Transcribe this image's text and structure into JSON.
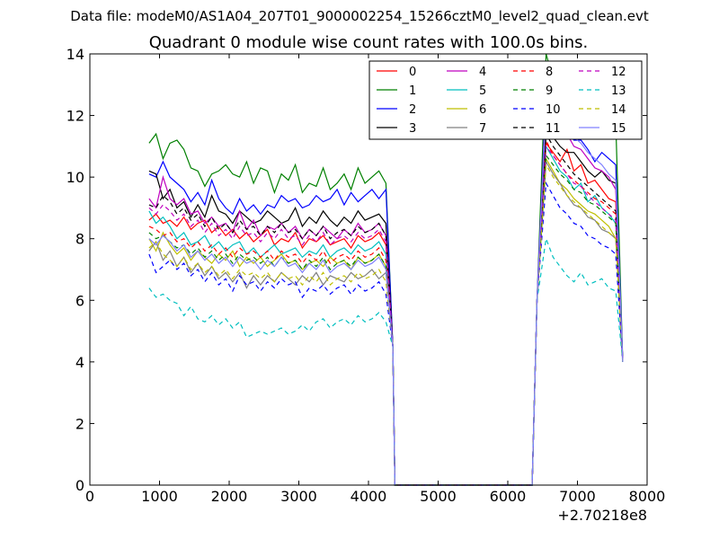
{
  "suptitle": "Data file: modeM0/AS1A04_207T01_9000002254_15266cztM0_level2_quad_clean.evt",
  "chart_data": {
    "type": "line",
    "title": "Quadrant 0 module wise count rates with 100.0s bins.",
    "xlabel": "",
    "ylabel": "",
    "x_offset_label": "+2.70218e8",
    "xlim": [
      0,
      8000
    ],
    "ylim": [
      0,
      14
    ],
    "xticks": [
      "0",
      "1000",
      "2000",
      "3000",
      "4000",
      "5000",
      "6000",
      "7000",
      "8000"
    ],
    "yticks": [
      "0",
      "2",
      "4",
      "6",
      "8",
      "10",
      "12",
      "14"
    ],
    "grid": false,
    "legend_placement": "top-right",
    "segments": [
      {
        "x_start": 850,
        "x_end": 4250,
        "points": 35
      },
      {
        "x_start": 6550,
        "x_end": 7550,
        "points": 11
      }
    ],
    "series": [
      {
        "name": "0",
        "color": "#ff0000",
        "dash": "solid",
        "first": [
          8.6,
          8.8,
          8.5,
          8.6,
          8.4,
          8.7,
          8.3,
          8.5,
          8.6,
          8.2,
          8.4,
          8.1,
          8.3,
          8.0,
          8.2,
          7.9,
          8.1,
          8.3,
          7.8,
          8.0,
          7.9,
          8.2,
          7.7,
          8.0,
          7.9,
          8.1,
          7.8,
          7.9,
          8.0,
          7.7,
          8.1,
          7.9,
          8.0,
          8.2,
          7.8
        ],
        "second": [
          11.1,
          10.8,
          10.5,
          10.9,
          10.2,
          10.4,
          9.8,
          9.9,
          9.6,
          9.3,
          9.2
        ]
      },
      {
        "name": "1",
        "color": "#008000",
        "dash": "solid",
        "first": [
          11.1,
          11.4,
          10.6,
          11.1,
          11.2,
          10.9,
          10.3,
          10.2,
          9.7,
          10.1,
          10.2,
          10.4,
          10.1,
          10.0,
          10.5,
          9.8,
          10.3,
          10.2,
          9.5,
          10.1,
          9.9,
          10.4,
          9.5,
          9.8,
          9.7,
          10.3,
          9.6,
          9.8,
          10.1,
          9.6,
          10.3,
          9.8,
          10.0,
          10.2,
          9.8
        ],
        "second": [
          14.0,
          13.2,
          12.7,
          12.6,
          12.3,
          12.0,
          11.5,
          11.9,
          11.6,
          12.4,
          11.8
        ]
      },
      {
        "name": "2",
        "color": "#0000ff",
        "dash": "solid",
        "first": [
          10.1,
          10.0,
          10.5,
          10.0,
          9.8,
          9.6,
          9.2,
          9.5,
          9.1,
          9.9,
          9.3,
          9.0,
          8.8,
          9.3,
          8.9,
          9.1,
          8.8,
          9.1,
          9.0,
          9.4,
          9.2,
          9.3,
          9.0,
          9.1,
          9.4,
          9.2,
          9.3,
          9.6,
          9.1,
          9.5,
          9.2,
          9.4,
          9.6,
          9.3,
          9.6
        ],
        "second": [
          12.8,
          12.1,
          11.8,
          11.5,
          11.2,
          11.2,
          10.9,
          10.5,
          10.8,
          10.6,
          10.4
        ]
      },
      {
        "name": "3",
        "color": "#000000",
        "dash": "solid",
        "first": [
          10.2,
          10.1,
          9.3,
          9.6,
          9.0,
          9.2,
          8.7,
          9.1,
          8.7,
          9.4,
          8.9,
          8.8,
          8.5,
          8.9,
          8.7,
          8.5,
          8.6,
          8.9,
          8.7,
          8.5,
          8.6,
          9.0,
          8.4,
          8.7,
          8.5,
          8.9,
          8.6,
          8.4,
          8.7,
          8.5,
          8.9,
          8.6,
          8.7,
          8.8,
          8.5
        ],
        "second": [
          11.6,
          11.3,
          11.0,
          10.8,
          10.8,
          10.5,
          10.2,
          10.0,
          10.2,
          9.9,
          9.8
        ]
      },
      {
        "name": "4",
        "color": "#bf00bf",
        "dash": "solid",
        "first": [
          9.3,
          9.0,
          10.0,
          9.3,
          9.1,
          9.3,
          8.8,
          8.9,
          8.5,
          8.7,
          8.4,
          8.5,
          8.2,
          8.9,
          8.3,
          8.6,
          8.1,
          8.4,
          8.3,
          8.5,
          8.2,
          8.4,
          8.0,
          8.3,
          8.1,
          8.4,
          8.2,
          8.0,
          8.3,
          8.1,
          8.5,
          8.2,
          8.3,
          8.5,
          8.1
        ],
        "second": [
          12.5,
          12.0,
          11.7,
          11.4,
          11.0,
          10.9,
          10.6,
          10.3,
          10.2,
          10.0,
          9.6
        ]
      },
      {
        "name": "5",
        "color": "#00bfbf",
        "dash": "solid",
        "first": [
          8.9,
          8.5,
          8.7,
          8.4,
          8.0,
          8.2,
          7.8,
          7.9,
          8.1,
          7.7,
          7.9,
          7.6,
          7.8,
          7.9,
          7.5,
          7.7,
          7.4,
          7.6,
          7.8,
          7.5,
          7.6,
          7.7,
          7.4,
          7.6,
          7.5,
          7.8,
          7.4,
          7.6,
          7.7,
          7.5,
          7.8,
          7.6,
          7.7,
          7.9,
          7.5
        ],
        "second": [
          11.0,
          10.6,
          10.2,
          10.0,
          9.6,
          9.8,
          9.2,
          9.4,
          9.0,
          8.8,
          8.5
        ]
      },
      {
        "name": "6",
        "color": "#bfbf00",
        "dash": "solid",
        "first": [
          8.0,
          7.6,
          8.2,
          7.8,
          7.5,
          7.7,
          7.3,
          7.6,
          7.4,
          7.2,
          7.5,
          7.3,
          7.6,
          7.1,
          7.4,
          7.2,
          7.4,
          7.1,
          7.3,
          7.5,
          7.2,
          7.3,
          7.0,
          7.2,
          7.3,
          7.1,
          7.4,
          7.2,
          7.3,
          7.0,
          7.4,
          7.2,
          7.3,
          7.5,
          7.1
        ],
        "second": [
          10.6,
          10.2,
          9.8,
          9.6,
          9.3,
          9.1,
          8.9,
          8.8,
          8.6,
          8.4,
          8.0
        ]
      },
      {
        "name": "7",
        "color": "#808080",
        "dash": "solid",
        "first": [
          7.6,
          7.9,
          7.3,
          7.6,
          7.1,
          7.4,
          6.9,
          7.2,
          6.8,
          7.1,
          6.7,
          6.9,
          6.6,
          6.9,
          6.4,
          6.8,
          6.5,
          6.8,
          6.6,
          6.9,
          6.7,
          6.5,
          6.8,
          6.6,
          6.9,
          6.5,
          6.8,
          6.7,
          6.6,
          6.9,
          6.7,
          6.8,
          7.0,
          6.7,
          6.9
        ],
        "second": [
          10.5,
          10.1,
          9.8,
          9.4,
          9.1,
          9.0,
          8.7,
          8.6,
          8.3,
          8.2,
          8.0
        ]
      },
      {
        "name": "8",
        "color": "#ff0000",
        "dash": "dashed",
        "first": [
          8.4,
          8.3,
          8.1,
          8.2,
          7.9,
          8.0,
          7.7,
          7.9,
          7.6,
          7.8,
          7.5,
          7.7,
          7.4,
          7.7,
          7.5,
          7.6,
          7.4,
          7.6,
          7.3,
          7.6,
          7.4,
          7.5,
          7.2,
          7.5,
          7.3,
          7.6,
          7.2,
          7.4,
          7.5,
          7.3,
          7.6,
          7.4,
          7.5,
          7.7,
          7.3
        ],
        "second": [
          11.2,
          10.7,
          10.4,
          10.1,
          9.9,
          9.7,
          9.5,
          9.3,
          9.2,
          9.0,
          8.8
        ]
      },
      {
        "name": "9",
        "color": "#008000",
        "dash": "dashed",
        "first": [
          8.2,
          8.0,
          8.1,
          7.9,
          7.7,
          7.8,
          7.5,
          7.7,
          7.4,
          7.6,
          7.3,
          7.5,
          7.2,
          7.5,
          7.3,
          7.4,
          7.2,
          7.4,
          7.1,
          7.4,
          7.2,
          7.3,
          7.0,
          7.3,
          7.1,
          7.4,
          7.0,
          7.2,
          7.3,
          7.1,
          7.4,
          7.2,
          7.3,
          7.5,
          7.1
        ],
        "second": [
          10.7,
          10.4,
          10.1,
          9.9,
          9.6,
          9.5,
          9.2,
          9.1,
          8.9,
          8.7,
          8.5
        ]
      },
      {
        "name": "10",
        "color": "#0000ff",
        "dash": "dashed",
        "first": [
          7.5,
          6.9,
          7.1,
          7.3,
          7.0,
          7.2,
          6.8,
          7.0,
          6.6,
          6.9,
          6.5,
          6.7,
          6.3,
          6.8,
          6.5,
          6.6,
          6.3,
          6.6,
          6.4,
          6.7,
          6.5,
          6.6,
          6.1,
          6.4,
          6.3,
          6.5,
          6.2,
          6.4,
          6.5,
          6.2,
          6.5,
          6.3,
          6.4,
          6.6,
          6.2
        ],
        "second": [
          9.8,
          9.4,
          9.0,
          8.8,
          8.5,
          8.4,
          8.1,
          8.0,
          7.8,
          7.7,
          7.5
        ]
      },
      {
        "name": "11",
        "color": "#000000",
        "dash": "dashed",
        "first": [
          9.1,
          9.0,
          9.4,
          9.2,
          8.8,
          9.0,
          8.6,
          8.8,
          8.4,
          8.7,
          8.3,
          8.5,
          8.2,
          8.6,
          8.3,
          8.4,
          8.1,
          8.4,
          8.2,
          8.5,
          8.2,
          8.3,
          8.0,
          8.3,
          8.1,
          8.4,
          8.0,
          8.2,
          8.3,
          8.1,
          8.4,
          8.2,
          8.3,
          8.5,
          8.1
        ],
        "second": [
          11.4,
          11.0,
          10.7,
          10.4,
          10.1,
          9.9,
          9.7,
          9.5,
          9.3,
          9.1,
          8.9
        ]
      },
      {
        "name": "12",
        "color": "#bf00bf",
        "dash": "dashed",
        "first": [
          9.0,
          8.8,
          9.1,
          8.9,
          8.6,
          8.8,
          8.4,
          8.6,
          8.2,
          8.5,
          8.1,
          8.3,
          8.0,
          8.4,
          8.1,
          8.2,
          7.9,
          8.2,
          8.0,
          8.3,
          8.0,
          8.1,
          7.8,
          8.1,
          7.9,
          8.2,
          7.8,
          8.0,
          8.1,
          7.9,
          8.2,
          8.0,
          8.1,
          8.3,
          7.9
        ],
        "second": [
          11.0,
          10.7,
          10.4,
          10.1,
          9.8,
          9.7,
          9.4,
          9.2,
          9.0,
          8.8,
          8.6
        ]
      },
      {
        "name": "13",
        "color": "#00bfbf",
        "dash": "dashed",
        "first": [
          6.4,
          6.1,
          6.2,
          6.0,
          5.9,
          5.5,
          5.8,
          5.4,
          5.3,
          5.5,
          5.2,
          5.4,
          5.1,
          5.3,
          4.8,
          4.9,
          5.0,
          4.9,
          5.0,
          5.1,
          4.9,
          5.0,
          5.2,
          5.0,
          5.3,
          5.4,
          5.1,
          5.3,
          5.4,
          5.2,
          5.5,
          5.3,
          5.4,
          5.6,
          5.3
        ],
        "second": [
          8.0,
          7.4,
          7.1,
          6.8,
          6.6,
          6.9,
          6.5,
          6.6,
          6.7,
          6.4,
          6.3
        ]
      },
      {
        "name": "14",
        "color": "#bfbf00",
        "dash": "dashed",
        "first": [
          7.7,
          7.9,
          7.5,
          7.3,
          7.1,
          7.4,
          7.0,
          7.2,
          6.9,
          7.1,
          6.8,
          7.0,
          6.7,
          7.0,
          6.8,
          6.9,
          6.7,
          6.9,
          6.6,
          6.9,
          6.7,
          6.8,
          6.5,
          6.8,
          6.6,
          6.9,
          6.5,
          6.7,
          6.8,
          6.6,
          6.9,
          6.7,
          6.8,
          7.0,
          6.6
        ],
        "second": [
          10.4,
          10.0,
          9.7,
          9.4,
          9.2,
          9.0,
          8.8,
          8.6,
          8.4,
          8.2,
          8.0
        ]
      },
      {
        "name": "15",
        "color": "#8080ff",
        "dash": "solid",
        "first": [
          8.0,
          7.8,
          8.1,
          7.9,
          7.6,
          7.8,
          7.4,
          7.6,
          7.3,
          7.5,
          7.2,
          7.4,
          7.1,
          7.4,
          7.2,
          7.3,
          7.0,
          7.3,
          7.1,
          7.4,
          7.1,
          7.2,
          6.9,
          7.2,
          7.0,
          7.3,
          6.9,
          7.1,
          7.2,
          7.0,
          7.3,
          7.1,
          7.2,
          7.4,
          7.0
        ],
        "second": [
          12.3,
          12.0,
          11.8,
          11.6,
          11.3,
          11.1,
          10.8,
          10.6,
          10.4,
          10.1,
          9.9
        ]
      }
    ]
  }
}
